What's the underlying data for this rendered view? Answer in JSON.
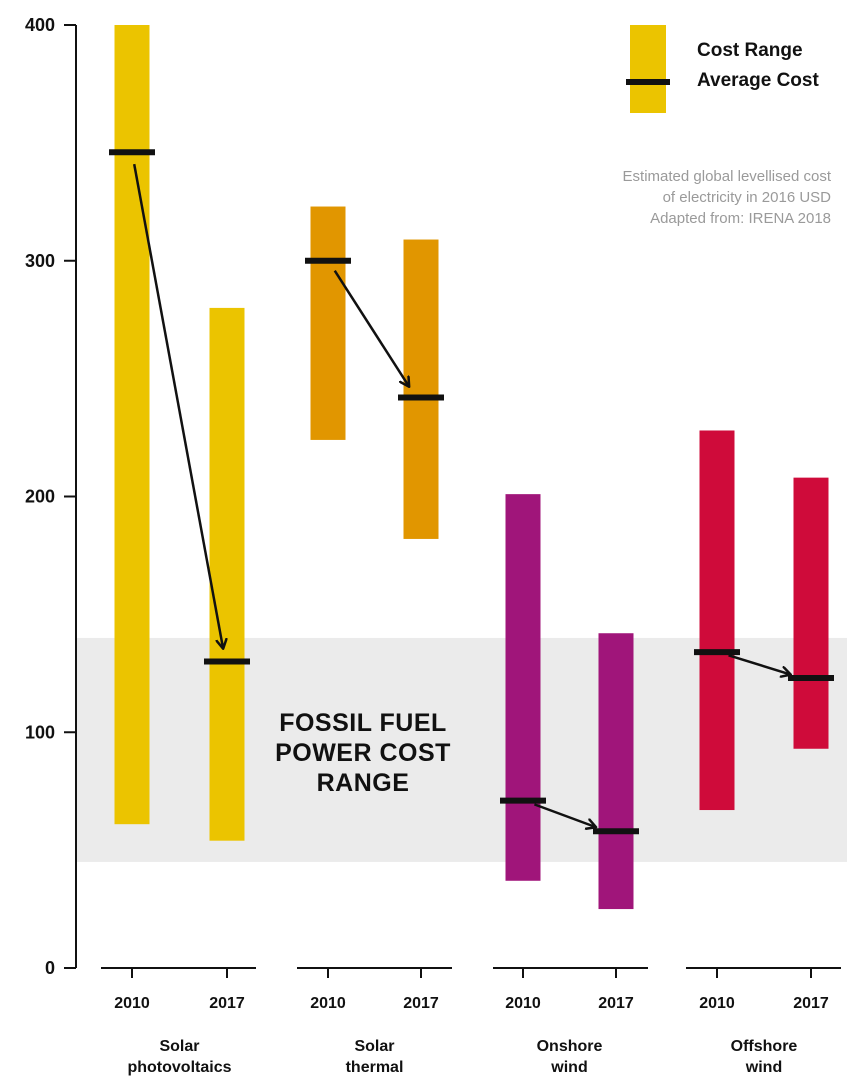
{
  "chart_data": {
    "type": "bar",
    "title": "",
    "ylim": [
      0,
      400
    ],
    "y_ticks": [
      "0",
      "100",
      "200",
      "300",
      "400"
    ],
    "grid": false,
    "legend_placement": "top-right",
    "legend": {
      "range_label": "Cost Range",
      "average_label": "Average Cost"
    },
    "note": [
      "Estimated global levellised cost",
      "of electricity in 2016 USD",
      "Adapted from: IRENA 2018"
    ],
    "band": {
      "label": [
        "FOSSIL FUEL",
        "POWER COST",
        "RANGE"
      ],
      "range": [
        45,
        140
      ],
      "color": "#ebebeb"
    },
    "groups": [
      {
        "label": [
          "Solar",
          "photovoltaics"
        ],
        "color": "#ebc400",
        "bars": [
          {
            "year": "2010",
            "low": 61,
            "high": 400,
            "avg": 346
          },
          {
            "year": "2017",
            "low": 54,
            "high": 280,
            "avg": 130
          }
        ]
      },
      {
        "label": [
          "Solar",
          "thermal"
        ],
        "color": "#e19600",
        "bars": [
          {
            "year": "2010",
            "low": 224,
            "high": 323,
            "avg": 300
          },
          {
            "year": "2017",
            "low": 182,
            "high": 309,
            "avg": 242
          }
        ]
      },
      {
        "label": [
          "Onshore",
          "wind"
        ],
        "color": "#a0157a",
        "bars": [
          {
            "year": "2010",
            "low": 37,
            "high": 201,
            "avg": 71
          },
          {
            "year": "2017",
            "low": 25,
            "high": 142,
            "avg": 58
          }
        ]
      },
      {
        "label": [
          "Offshore",
          "wind"
        ],
        "color": "#cf0b3a",
        "bars": [
          {
            "year": "2010",
            "low": 67,
            "high": 228,
            "avg": 134
          },
          {
            "year": "2017",
            "low": 93,
            "high": 208,
            "avg": 123
          }
        ]
      }
    ]
  }
}
